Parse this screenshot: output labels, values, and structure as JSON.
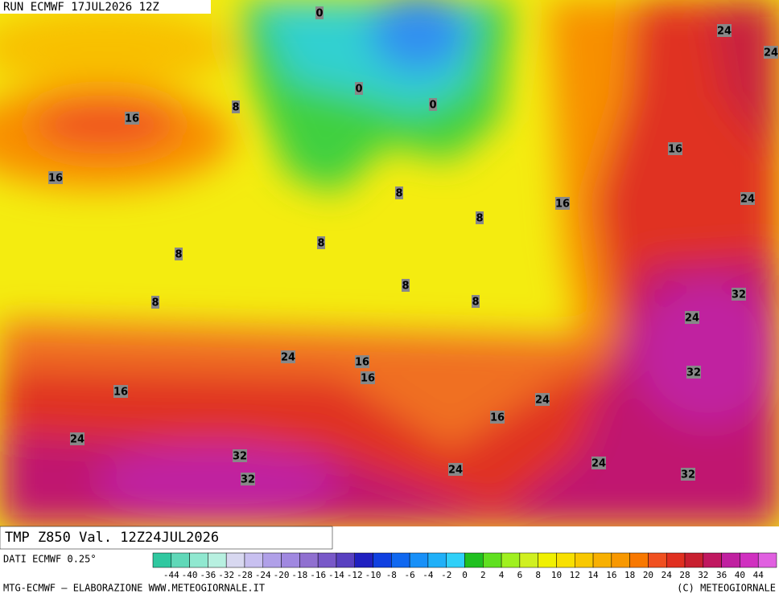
{
  "header": {
    "run": "RUN ECMWF 17JUL2026 12Z"
  },
  "map": {
    "contour_labels": [
      "0",
      "0",
      "0",
      "8",
      "16",
      "16",
      "16",
      "24",
      "24",
      "24",
      "16",
      "8",
      "8",
      "8",
      "8",
      "8",
      "8",
      "8",
      "32",
      "24",
      "24",
      "16",
      "16",
      "32",
      "16",
      "24",
      "16",
      "24",
      "32",
      "32",
      "24",
      "24",
      "32"
    ]
  },
  "footer": {
    "title": "TMP Z850 Val. 12Z24JUL2026",
    "source": "DATI ECMWF 0.25°",
    "credit": "MTG-ECMWF – ELABORAZIONE WWW.METEOGIORNALE.IT",
    "copyright": "(C) METEOGIORNALE"
  },
  "legend": {
    "labels": [
      "-44",
      "-40",
      "-36",
      "-32",
      "-28",
      "-24",
      "-20",
      "-18",
      "-16",
      "-14",
      "-12",
      "-10",
      "-8",
      "-6",
      "-4",
      "-2",
      "0",
      "2",
      "4",
      "6",
      "8",
      "10",
      "12",
      "14",
      "16",
      "18",
      "20",
      "24",
      "28",
      "32",
      "36",
      "40",
      "44"
    ],
    "colors": [
      "#30c8a0",
      "#60d8b8",
      "#90e8d0",
      "#b8f0e0",
      "#d8d8f0",
      "#c8c0f0",
      "#b0a0e8",
      "#a088e0",
      "#9070d0",
      "#7858c8",
      "#5840c0",
      "#2020c0",
      "#1040e0",
      "#1068f0",
      "#1890f8",
      "#20b0f8",
      "#30d0f8",
      "#20c020",
      "#60e020",
      "#a0f020",
      "#d0f020",
      "#f0f000",
      "#f8e000",
      "#f8c800",
      "#f8b000",
      "#f89800",
      "#f87800",
      "#f05020",
      "#e03020",
      "#c82030",
      "#c01860",
      "#c020a0",
      "#d030c0",
      "#e060e0"
    ]
  }
}
